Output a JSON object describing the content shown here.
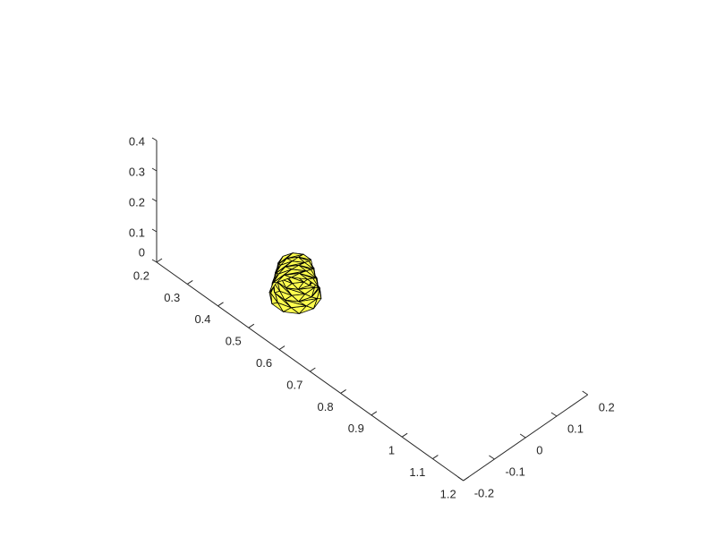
{
  "chart_data": {
    "type": "mesh3d",
    "title": "",
    "xlabel": "",
    "ylabel": "",
    "zlabel": "",
    "x_axis": {
      "ticks": [
        0.2,
        0.3,
        0.4,
        0.5,
        0.6,
        0.7,
        0.8,
        0.9,
        1,
        1.1,
        1.2
      ],
      "tick_labels": [
        "0.2",
        "0.3",
        "0.4",
        "0.5",
        "0.6",
        "0.7",
        "0.8",
        "0.9",
        "1",
        "1.1",
        "1.2"
      ],
      "lim": [
        0.2,
        1.2
      ]
    },
    "y_axis": {
      "ticks": [
        -0.2,
        -0.1,
        0,
        0.1,
        0.2
      ],
      "tick_labels": [
        "-0.2",
        "-0.1",
        "0",
        "0.1",
        "0.2"
      ],
      "lim": [
        -0.2,
        0.2
      ]
    },
    "z_axis": {
      "ticks": [
        0,
        0.1,
        0.2,
        0.3,
        0.4
      ],
      "tick_labels": [
        "0",
        "0.1",
        "0.2",
        "0.3",
        "0.4"
      ],
      "lim": [
        0,
        0.4
      ]
    },
    "grid": false,
    "object": {
      "shape": "triangulated truncated cone",
      "face_color": "#ffff4d",
      "edge_color": "#000000",
      "center_x": 0.5,
      "center_y": -0.05,
      "z_range": [
        0.0,
        0.1
      ],
      "radius_bottom": 0.06,
      "radius_top": 0.04,
      "rings": 6,
      "segments": 10
    }
  }
}
